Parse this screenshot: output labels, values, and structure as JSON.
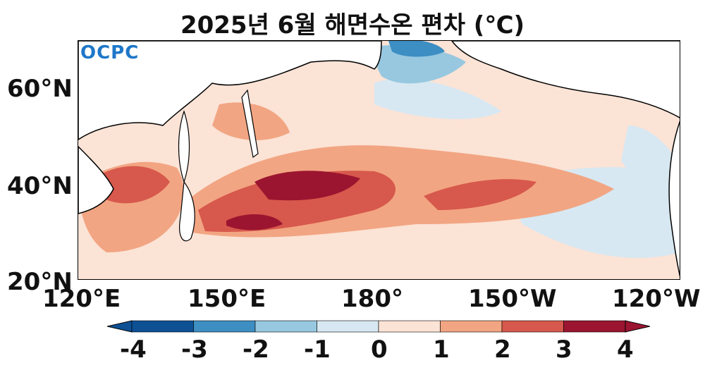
{
  "title": "2025년 6월 해면수온 편차 (℃)",
  "logo": "OCPC",
  "lat_labels": [
    "60°N",
    "40°N",
    "20°N"
  ],
  "lon_labels": [
    "120°E",
    "150°E",
    "180°",
    "150°W",
    "120°W"
  ],
  "colorbar": {
    "ticks": [
      "-4",
      "-3",
      "-2",
      "-1",
      "0",
      "1",
      "2",
      "3",
      "4"
    ],
    "colors": [
      "#0d5094",
      "#3d8ec3",
      "#97c8e0",
      "#d7e8f2",
      "#fbe3d6",
      "#f2a582",
      "#d7584c",
      "#9b1530"
    ]
  },
  "map_extent": {
    "lon": [
      "120°E",
      "120°W"
    ],
    "lat": [
      "20°N",
      "70°N"
    ]
  }
}
